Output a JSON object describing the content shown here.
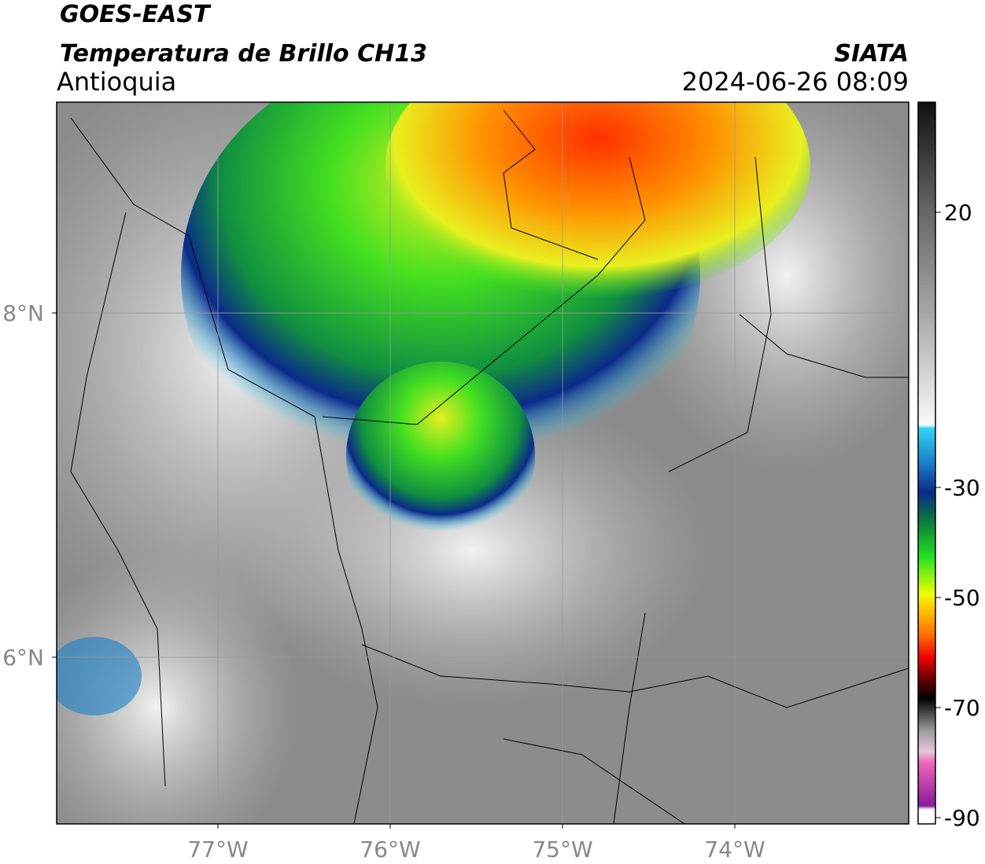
{
  "header": {
    "title": "GOES-EAST",
    "subtitle": "Temperatura de Brillo CH13",
    "region": "Antioquia",
    "source": "SIATA",
    "datetime": "2024-06-26 08:09"
  },
  "map": {
    "xlim": [
      -77.936,
      -72.991
    ],
    "ylim": [
      5.032,
      9.224
    ],
    "xticks": [
      {
        "value": -77,
        "label": "77°W"
      },
      {
        "value": -76,
        "label": "76°W"
      },
      {
        "value": -75,
        "label": "75°W"
      },
      {
        "value": -74,
        "label": "74°W"
      }
    ],
    "yticks": [
      {
        "value": 8,
        "label": "8°N"
      },
      {
        "value": 6,
        "label": "6°N"
      }
    ],
    "grid": true
  },
  "colorbar": {
    "lim": [
      -91.14,
      40
    ],
    "ticks": [
      20,
      -30,
      -50,
      -70,
      -90
    ]
  }
}
